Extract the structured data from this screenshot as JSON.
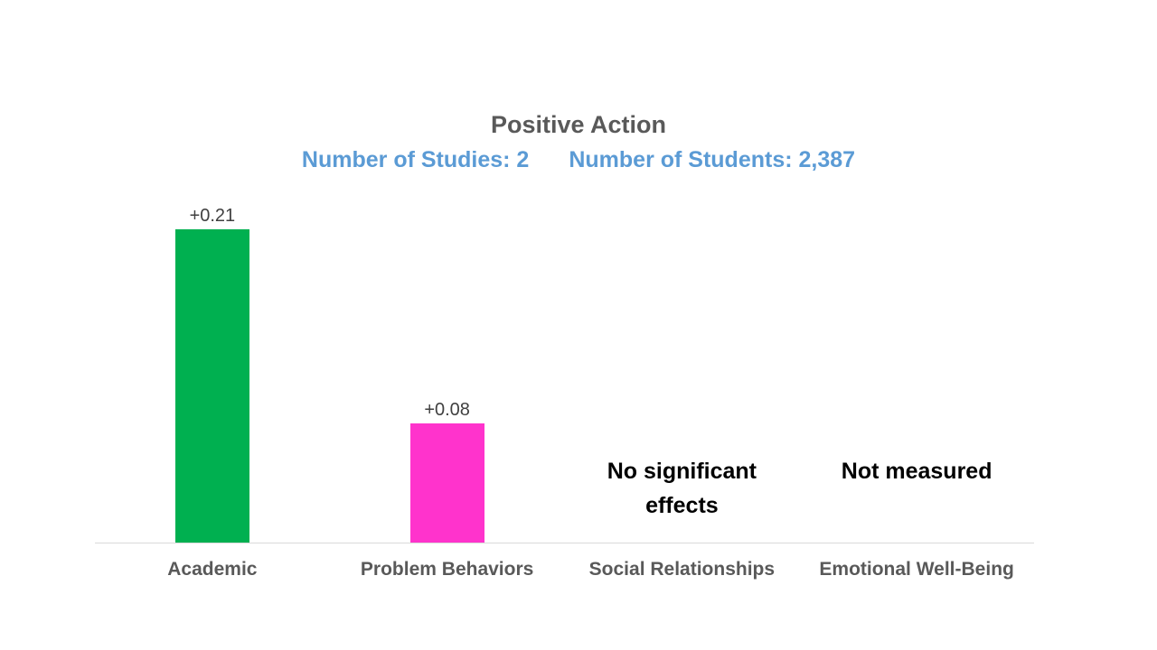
{
  "header": {
    "title": "Positive Action",
    "subtitle_studies": "Number of Studies: 2",
    "subtitle_students": "Number of Students: 2,387"
  },
  "colors": {
    "title_text": "#595959",
    "subtitle_text": "#5B9BD5",
    "data_label_text": "#404040",
    "category_label_text": "#595959",
    "annotation_text": "#000000",
    "axis_line": "#D9D9D9",
    "bar_academic": "#00B050",
    "bar_problem_behaviors": "#FF33CC"
  },
  "chart_data": {
    "type": "bar",
    "title": "Positive Action",
    "subtitle": "Number of Studies: 2    Number of Students: 2,387",
    "categories": [
      "Academic",
      "Problem Behaviors",
      "Social Relationships",
      "Emotional Well-Being"
    ],
    "values": [
      0.21,
      0.08,
      null,
      null
    ],
    "data_labels": [
      "+0.21",
      "+0.08",
      "",
      ""
    ],
    "annotations": [
      "",
      "",
      "No significant effects",
      "Not measured"
    ],
    "bar_colors": [
      "#00B050",
      "#FF33CC",
      "",
      ""
    ],
    "xlabel": "",
    "ylabel": "",
    "ylim": [
      0,
      0.23
    ],
    "grid": false,
    "legend": false,
    "columns": [
      {
        "category": "Academic",
        "value": 0.21,
        "label": "+0.21",
        "color": "#00B050",
        "note": ""
      },
      {
        "category": "Problem Behaviors",
        "value": 0.08,
        "label": "+0.08",
        "color": "#FF33CC",
        "note": ""
      },
      {
        "category": "Social Relationships",
        "value": null,
        "label": "",
        "color": "",
        "note": "No significant effects"
      },
      {
        "category": "Emotional Well-Being",
        "value": null,
        "label": "",
        "color": "",
        "note": "Not measured"
      }
    ]
  }
}
